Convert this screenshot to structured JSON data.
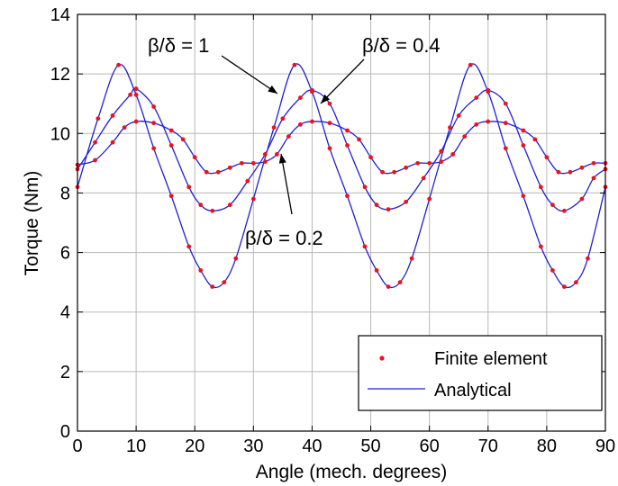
{
  "chart_data": {
    "type": "line",
    "title": "",
    "xlabel": "Angle (mech. degrees)",
    "ylabel": "Torque (Nm)",
    "xlim": [
      0,
      90
    ],
    "ylim": [
      0,
      14
    ],
    "xticks": [
      0,
      10,
      20,
      30,
      40,
      50,
      60,
      70,
      80,
      90
    ],
    "yticks": [
      0,
      2,
      4,
      6,
      8,
      10,
      12,
      14
    ],
    "grid": true,
    "legend_position": "bottom-right",
    "legend": [
      {
        "label": "Finite element",
        "style": "dots",
        "color": "#e8141e"
      },
      {
        "label": "Analytical",
        "style": "line",
        "color": "#1f1fd6"
      }
    ],
    "colors": {
      "line": "#1f1fd6",
      "markers": "#e8141e",
      "grid": "#b8b8b8"
    },
    "series": [
      {
        "annotation": "β/δ = 1",
        "x": [
          0,
          3.5,
          7,
          10,
          13,
          16,
          19,
          21,
          23,
          25,
          27,
          30,
          33.5,
          37,
          40,
          43,
          46,
          49,
          51,
          53,
          55,
          57,
          60,
          63.5,
          67,
          70,
          73,
          76,
          79,
          81,
          83,
          85,
          87,
          90
        ],
        "y": [
          8.2,
          10.5,
          12.3,
          11.3,
          9.5,
          7.9,
          6.2,
          5.4,
          4.85,
          5.0,
          5.8,
          7.8,
          10.2,
          12.3,
          11.4,
          9.5,
          7.9,
          6.2,
          5.4,
          4.85,
          5.0,
          5.8,
          7.8,
          10.2,
          12.3,
          11.4,
          9.5,
          7.9,
          6.2,
          5.4,
          4.85,
          5.0,
          5.8,
          8.2
        ]
      },
      {
        "annotation": "β/δ = 0.4",
        "x": [
          0,
          3,
          6,
          9,
          10,
          13,
          16,
          19,
          21,
          23,
          26,
          29,
          32,
          35,
          38,
          40,
          43,
          46,
          49,
          51,
          53,
          56,
          59,
          62,
          65,
          68,
          70,
          73,
          76,
          79,
          81,
          83,
          86,
          88,
          90
        ],
        "y": [
          8.8,
          9.7,
          10.6,
          11.3,
          11.5,
          10.9,
          9.6,
          8.2,
          7.6,
          7.4,
          7.6,
          8.4,
          9.3,
          10.5,
          11.2,
          11.45,
          11.0,
          9.6,
          8.2,
          7.6,
          7.45,
          7.7,
          8.5,
          9.4,
          10.6,
          11.2,
          11.45,
          11.0,
          9.6,
          8.2,
          7.6,
          7.4,
          7.8,
          8.5,
          8.8
        ]
      },
      {
        "annotation": "β/δ = 0.2",
        "x": [
          0,
          3,
          6,
          8,
          10,
          13,
          16,
          18,
          20,
          22,
          24,
          26,
          28,
          30,
          32,
          34,
          36,
          38,
          40,
          43,
          46,
          48,
          50,
          52,
          54,
          56,
          58,
          60,
          62,
          64,
          66,
          68,
          70,
          73,
          76,
          78,
          80,
          82,
          84,
          86,
          88,
          90
        ],
        "y": [
          8.95,
          9.1,
          9.7,
          10.2,
          10.4,
          10.35,
          10.1,
          9.8,
          9.2,
          8.7,
          8.7,
          8.85,
          9.0,
          9.0,
          9.05,
          9.3,
          9.9,
          10.3,
          10.4,
          10.35,
          10.1,
          9.8,
          9.2,
          8.7,
          8.7,
          8.85,
          9.0,
          9.0,
          9.05,
          9.3,
          9.9,
          10.3,
          10.4,
          10.35,
          10.1,
          9.8,
          9.2,
          8.7,
          8.7,
          8.85,
          9.0,
          9.0
        ]
      }
    ]
  }
}
